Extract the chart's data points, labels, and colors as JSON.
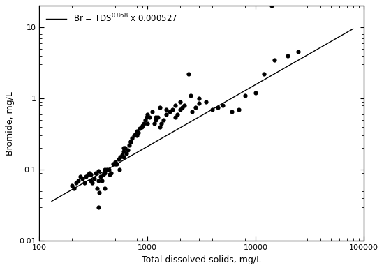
{
  "scatter_x": [
    200,
    210,
    220,
    230,
    240,
    250,
    260,
    270,
    280,
    290,
    300,
    310,
    320,
    330,
    340,
    350,
    360,
    370,
    380,
    390,
    400,
    420,
    440,
    460,
    480,
    500,
    520,
    540,
    560,
    580,
    600,
    620,
    640,
    660,
    680,
    700,
    720,
    750,
    780,
    800,
    820,
    850,
    880,
    900,
    930,
    960,
    980,
    1000,
    1050,
    1100,
    1150,
    1200,
    1250,
    1300,
    1350,
    1400,
    1500,
    1600,
    1700,
    1800,
    1900,
    2000,
    2100,
    2200,
    2400,
    2600,
    2800,
    3000,
    3500,
    4000,
    4500,
    5000,
    6000,
    7000,
    8000,
    10000,
    12000,
    15000,
    20000,
    25000,
    300,
    350,
    400,
    500,
    600,
    700,
    800,
    1000,
    1200,
    1500,
    2000,
    3000,
    1300,
    1800,
    2500,
    400,
    600,
    350,
    450,
    550
  ],
  "scatter_y": [
    0.06,
    0.055,
    0.065,
    0.07,
    0.08,
    0.075,
    0.065,
    0.08,
    0.085,
    0.09,
    0.07,
    0.065,
    0.075,
    0.09,
    0.055,
    0.03,
    0.048,
    0.08,
    0.07,
    0.085,
    0.09,
    0.1,
    0.1,
    0.09,
    0.12,
    0.13,
    0.12,
    0.14,
    0.15,
    0.16,
    0.18,
    0.2,
    0.17,
    0.19,
    0.22,
    0.25,
    0.28,
    0.3,
    0.32,
    0.35,
    0.33,
    0.38,
    0.4,
    0.42,
    0.45,
    0.5,
    0.55,
    0.6,
    0.55,
    0.65,
    0.45,
    0.5,
    0.55,
    0.4,
    0.45,
    0.5,
    0.6,
    0.65,
    0.7,
    0.55,
    0.6,
    0.7,
    0.75,
    0.8,
    2.2,
    0.65,
    0.75,
    0.85,
    0.9,
    0.7,
    0.75,
    0.8,
    0.65,
    0.7,
    1.1,
    1.2,
    2.2,
    3.5,
    4.0,
    4.5,
    0.085,
    0.095,
    0.1,
    0.12,
    0.2,
    0.25,
    0.3,
    0.45,
    0.55,
    0.7,
    0.9,
    1.0,
    0.75,
    0.8,
    1.1,
    0.055,
    0.15,
    0.07,
    0.085,
    0.1
  ],
  "outlier_x": [
    14000
  ],
  "outlier_y": [
    20.0
  ],
  "fit_coeff": 0.000527,
  "fit_exp": 0.868,
  "fit_x_start": 130,
  "fit_x_end": 80000,
  "xlim": [
    100,
    100000
  ],
  "ylim": [
    0.01,
    20
  ],
  "xlabel": "Total dissolved solids, mg/L",
  "ylabel": "Bromide, mg/L",
  "line_color": "#000000",
  "marker_color": "#000000",
  "marker_size": 4.5,
  "background_color": "#ffffff"
}
